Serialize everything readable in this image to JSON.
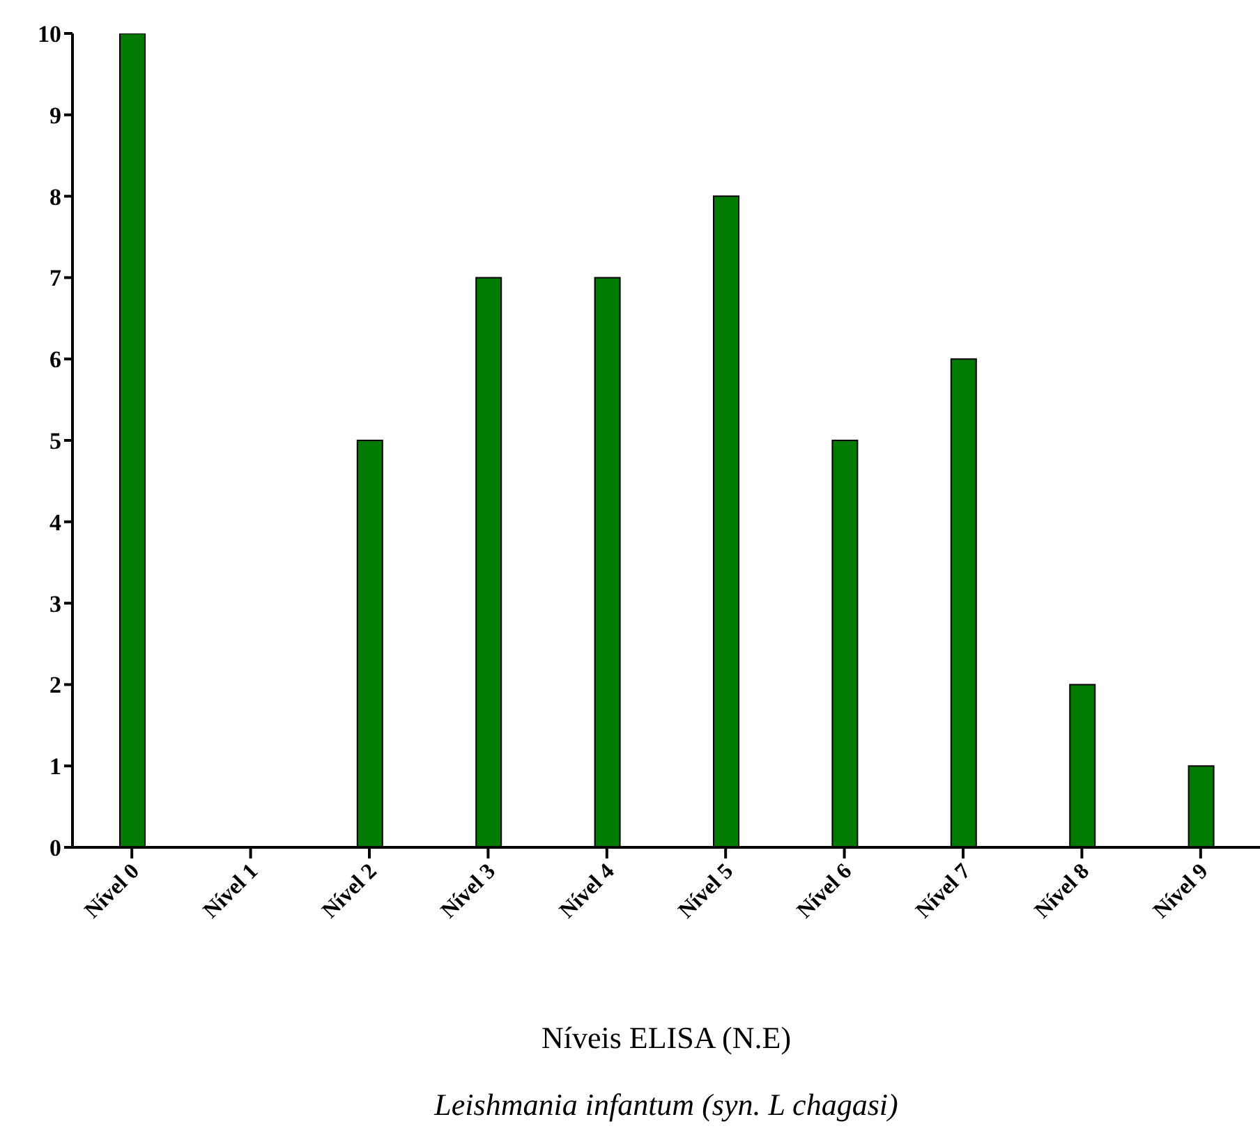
{
  "chart_data": {
    "type": "bar",
    "xlabel": "Níveis ELISA (N.E)",
    "annotations": [
      "Leishmania infantum (syn. L chagasi)"
    ],
    "categories": [
      "Nível 0",
      "Nível 1",
      "Nível 2",
      "Nível 3",
      "Nível 4",
      "Nível 5",
      "Nível 6",
      "Nível 7",
      "Nível 8",
      "Nível 9"
    ],
    "values": [
      10,
      0,
      5,
      7,
      7,
      8,
      5,
      6,
      2,
      1
    ],
    "color": "#007a00",
    "ylim": [
      0,
      10
    ],
    "yticks": [
      0,
      1,
      2,
      3,
      4,
      5,
      6,
      7,
      8,
      9,
      10
    ],
    "grid": false,
    "legend": false
  }
}
